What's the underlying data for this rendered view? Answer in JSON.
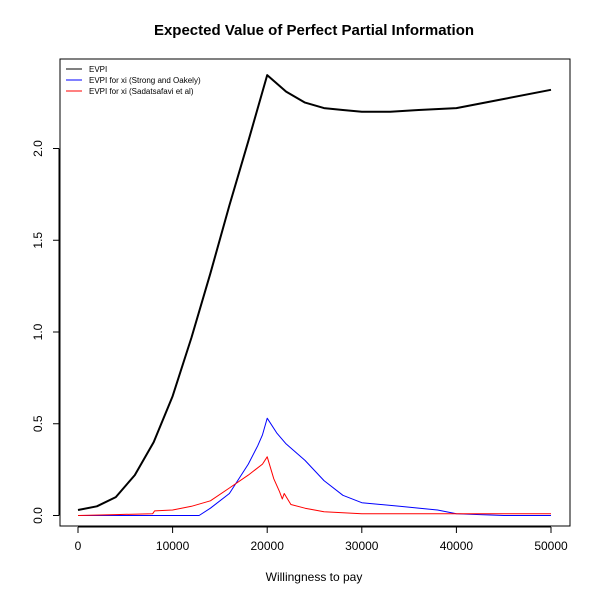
{
  "chart_data": {
    "type": "line",
    "title": "Expected Value of Perfect Partial Information",
    "xlabel": "Willingness to pay",
    "ylabel": "",
    "xlim": [
      0,
      50000
    ],
    "ylim": [
      0,
      2.4
    ],
    "x_ticks": [
      0,
      10000,
      20000,
      30000,
      40000,
      50000
    ],
    "x_tick_labels": [
      "0",
      "10000",
      "20000",
      "30000",
      "40000",
      "50000"
    ],
    "y_ticks": [
      0,
      0.5,
      1.0,
      1.5,
      2.0
    ],
    "y_tick_labels": [
      "0.0",
      "0.5",
      "1.0",
      "1.5",
      "2.0"
    ],
    "grid": false,
    "legend_position": "top-left",
    "series": [
      {
        "name": "EVPI",
        "color": "#000000",
        "points": [
          [
            0,
            0.03
          ],
          [
            2000,
            0.05
          ],
          [
            4000,
            0.1
          ],
          [
            6000,
            0.22
          ],
          [
            8000,
            0.4
          ],
          [
            10000,
            0.65
          ],
          [
            12000,
            0.97
          ],
          [
            14000,
            1.32
          ],
          [
            16000,
            1.69
          ],
          [
            18000,
            2.04
          ],
          [
            20000,
            2.4
          ],
          [
            22000,
            2.31
          ],
          [
            24000,
            2.25
          ],
          [
            26000,
            2.22
          ],
          [
            28000,
            2.21
          ],
          [
            30000,
            2.2
          ],
          [
            33000,
            2.2
          ],
          [
            36000,
            2.21
          ],
          [
            40000,
            2.22
          ],
          [
            45000,
            2.27
          ],
          [
            50000,
            2.32
          ]
        ]
      },
      {
        "name": "EVPI for xi (Strong and Oakely)",
        "color": "#0000ff",
        "points": [
          [
            0,
            0.0
          ],
          [
            4000,
            0.0
          ],
          [
            8000,
            0.0
          ],
          [
            12800,
            0.0
          ],
          [
            14000,
            0.04
          ],
          [
            16000,
            0.12
          ],
          [
            18000,
            0.28
          ],
          [
            19000,
            0.38
          ],
          [
            19500,
            0.44
          ],
          [
            20000,
            0.53
          ],
          [
            21000,
            0.45
          ],
          [
            22000,
            0.39
          ],
          [
            24000,
            0.3
          ],
          [
            26000,
            0.19
          ],
          [
            28000,
            0.11
          ],
          [
            30000,
            0.07
          ],
          [
            34000,
            0.05
          ],
          [
            38000,
            0.03
          ],
          [
            40000,
            0.01
          ],
          [
            45000,
            0.0
          ],
          [
            50000,
            0.0
          ]
        ]
      },
      {
        "name": "EVPI for xi (Sadatsafavi et al)",
        "color": "#ff0000",
        "points": [
          [
            0,
            0.0
          ],
          [
            4000,
            0.005
          ],
          [
            7900,
            0.01
          ],
          [
            8100,
            0.025
          ],
          [
            10000,
            0.03
          ],
          [
            12000,
            0.05
          ],
          [
            14000,
            0.08
          ],
          [
            16000,
            0.15
          ],
          [
            18000,
            0.22
          ],
          [
            19500,
            0.28
          ],
          [
            20000,
            0.32
          ],
          [
            20700,
            0.2
          ],
          [
            21300,
            0.13
          ],
          [
            21600,
            0.09
          ],
          [
            21800,
            0.12
          ],
          [
            22500,
            0.06
          ],
          [
            24000,
            0.04
          ],
          [
            26000,
            0.02
          ],
          [
            30000,
            0.01
          ],
          [
            40000,
            0.01
          ],
          [
            50000,
            0.01
          ]
        ]
      }
    ]
  }
}
